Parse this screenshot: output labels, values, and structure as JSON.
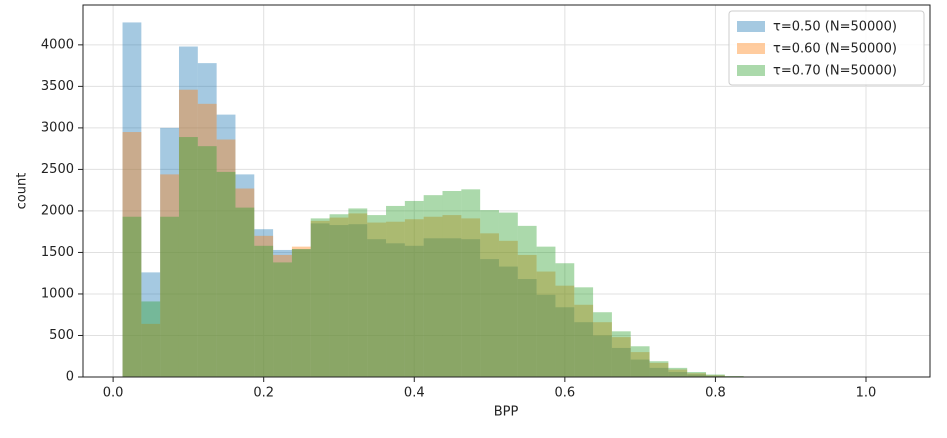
{
  "chart_data": {
    "type": "histogram",
    "xlabel": "BPP",
    "ylabel": "count",
    "bins": [
      0.0125,
      0.0375,
      0.0625,
      0.0875,
      0.1125,
      0.1375,
      0.1625,
      0.1875,
      0.2125,
      0.2375,
      0.2625,
      0.2875,
      0.3125,
      0.3375,
      0.3625,
      0.3875,
      0.4125,
      0.4375,
      0.4625,
      0.4875,
      0.5125,
      0.5375,
      0.5625,
      0.5875,
      0.6125,
      0.6375,
      0.6625,
      0.6875,
      0.7125,
      0.7375,
      0.7625,
      0.7875,
      0.8125,
      0.8375,
      0.8625,
      0.8875,
      0.9125,
      0.9375,
      0.9625,
      0.9875,
      1.0125
    ],
    "series": [
      {
        "name": "τ=0.50 (N=50000)",
        "color": "#1f77b4",
        "values": [
          4270,
          1260,
          3000,
          3980,
          3780,
          3160,
          2440,
          1780,
          1530,
          1540,
          1850,
          1830,
          1840,
          1660,
          1610,
          1580,
          1670,
          1670,
          1660,
          1420,
          1330,
          1180,
          990,
          840,
          660,
          500,
          350,
          210,
          110,
          60,
          30,
          15,
          5,
          0,
          0,
          0,
          0,
          0,
          0,
          0
        ]
      },
      {
        "name": "τ=0.60 (N=50000)",
        "color": "#ff7f0e",
        "values": [
          2950,
          640,
          2440,
          3460,
          3290,
          2860,
          2270,
          1700,
          1470,
          1570,
          1880,
          1920,
          1970,
          1860,
          1870,
          1900,
          1930,
          1950,
          1910,
          1730,
          1640,
          1470,
          1270,
          1100,
          870,
          660,
          480,
          300,
          170,
          90,
          45,
          20,
          8,
          0,
          0,
          0,
          0,
          0,
          0,
          0
        ]
      },
      {
        "name": "τ=0.70 (N=50000)",
        "color": "#2ca02c",
        "values": [
          1930,
          910,
          1930,
          2890,
          2780,
          2470,
          2040,
          1580,
          1380,
          1540,
          1910,
          1960,
          2030,
          1950,
          2060,
          2120,
          2190,
          2240,
          2260,
          2010,
          1980,
          1820,
          1570,
          1370,
          1080,
          780,
          550,
          370,
          190,
          110,
          60,
          30,
          12,
          0,
          0,
          0,
          0,
          0,
          0,
          0
        ]
      }
    ],
    "opacity": 0.4,
    "xlim": [
      -0.04,
      1.085
    ],
    "ylim": [
      0,
      4480
    ],
    "xticks": [
      {
        "value": 0,
        "label": "0.0"
      },
      0.2,
      0.4,
      0.6,
      0.8,
      {
        "value": 1,
        "label": "1.0"
      }
    ],
    "yticks": [
      0,
      500,
      1000,
      1500,
      2000,
      2500,
      3000,
      3500,
      4000
    ],
    "grid": true,
    "legend": "upper right"
  }
}
